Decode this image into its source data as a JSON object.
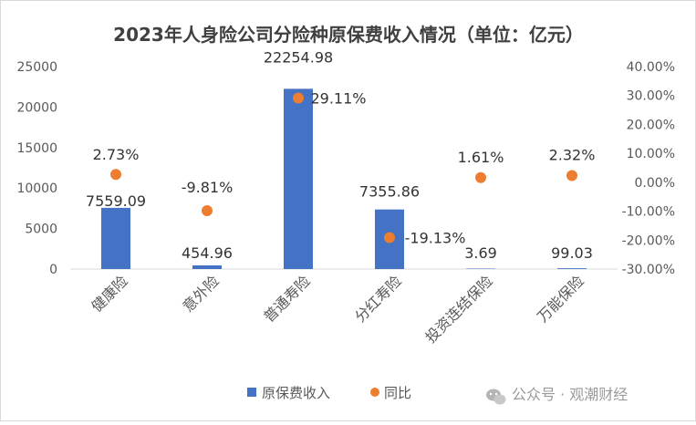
{
  "chart_data": {
    "type": "bar",
    "title": "2023年人身险公司分险种原保费收入情况（单位：亿元）",
    "categories": [
      "健康险",
      "意外险",
      "普通寿险",
      "分红寿险",
      "投资连结保险",
      "万能保险"
    ],
    "series": [
      {
        "name": "原保费收入",
        "axis": "left",
        "mark": "bar",
        "color": "#4472C4",
        "values": [
          7559.09,
          454.96,
          22254.98,
          7355.86,
          3.69,
          99.03
        ],
        "labels": [
          "7559.09",
          "454.96",
          "22254.98",
          "7355.86",
          "3.69",
          "99.03"
        ]
      },
      {
        "name": "同比",
        "axis": "right",
        "mark": "point",
        "color": "#ED7D31",
        "values": [
          2.73,
          -9.81,
          29.11,
          -19.13,
          1.61,
          2.32
        ],
        "labels": [
          "2.73%",
          "-9.81%",
          "29.11%",
          "-19.13%",
          "1.61%",
          "2.32%"
        ]
      }
    ],
    "y_left": {
      "range": [
        0,
        25000
      ],
      "ticks": [
        0,
        5000,
        10000,
        15000,
        20000,
        25000
      ],
      "tick_labels": [
        "0",
        "5000",
        "10000",
        "15000",
        "20000",
        "25000"
      ]
    },
    "y_right": {
      "range": [
        -30,
        40
      ],
      "ticks": [
        -30,
        -20,
        -10,
        0,
        10,
        20,
        30,
        40
      ],
      "tick_labels": [
        "-30.00%",
        "-20.00%",
        "-10.00%",
        "0.00%",
        "10.00%",
        "20.00%",
        "30.00%",
        "40.00%"
      ]
    },
    "grid": false,
    "legend": "bottom-center"
  },
  "watermark": {
    "text": "公众号 · 观潮财经"
  }
}
